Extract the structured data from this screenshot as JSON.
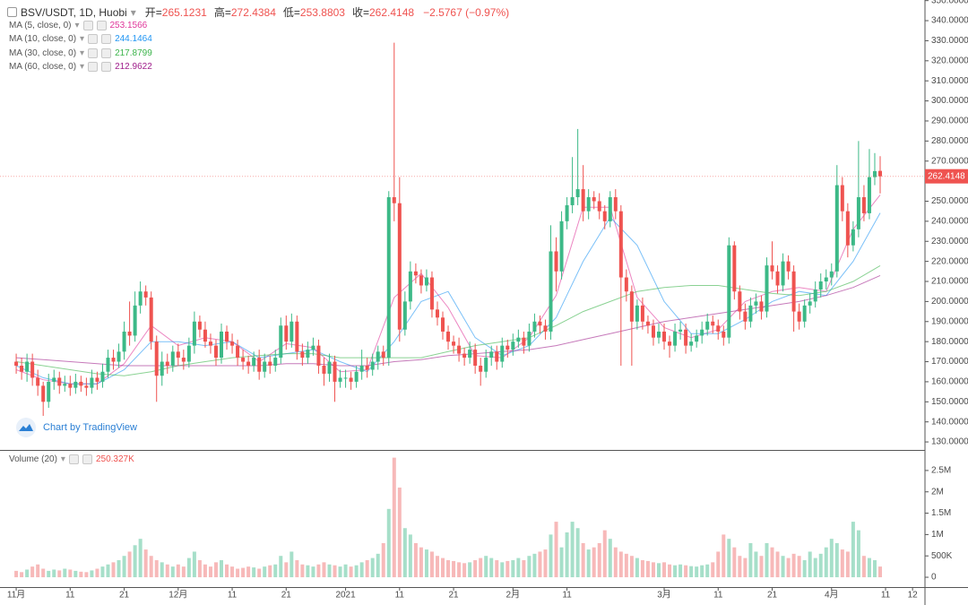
{
  "chart_data": {
    "type": "candlestick",
    "title": "BSV/USDT, 1D, Huobi",
    "ohlc_labels": [
      "开=",
      "高=",
      "低=",
      "收="
    ],
    "change": "−2.5767 (−0.97%)",
    "up_color": "#3cb987",
    "down_color": "#ef5350",
    "watermark": "Chart by TradingView",
    "xlim": [
      -3,
      168.3
    ],
    "xticks": [
      {
        "value": 0,
        "label": "11月"
      },
      {
        "value": 10,
        "label": "11"
      },
      {
        "value": 20,
        "label": "21"
      },
      {
        "value": 30,
        "label": "12月"
      },
      {
        "value": 40,
        "label": "11"
      },
      {
        "value": 50,
        "label": "21"
      },
      {
        "value": 61,
        "label": "2021"
      },
      {
        "value": 71,
        "label": "11"
      },
      {
        "value": 81,
        "label": "21"
      },
      {
        "value": 92,
        "label": "2月"
      },
      {
        "value": 102,
        "label": "11"
      },
      {
        "value": 120,
        "label": "3月"
      },
      {
        "value": 130,
        "label": "11"
      },
      {
        "value": 140,
        "label": "21"
      },
      {
        "value": 151,
        "label": "4月"
      },
      {
        "value": 161,
        "label": "11"
      },
      {
        "value": 166,
        "label": "12"
      }
    ],
    "ylim": [
      126.9,
      350.3
    ],
    "yticks": [
      {
        "value": 130,
        "label": "130.0000"
      },
      {
        "value": 140,
        "label": "140.0000"
      },
      {
        "value": 150,
        "label": "150.0000"
      },
      {
        "value": 160,
        "label": "160.0000"
      },
      {
        "value": 170,
        "label": "170.0000"
      },
      {
        "value": 180,
        "label": "180.0000"
      },
      {
        "value": 190,
        "label": "190.0000"
      },
      {
        "value": 200,
        "label": "200.0000"
      },
      {
        "value": 210,
        "label": "210.0000"
      },
      {
        "value": 220,
        "label": "220.0000"
      },
      {
        "value": 230,
        "label": "230.0000"
      },
      {
        "value": 240,
        "label": "240.0000"
      },
      {
        "value": 250,
        "label": "250.0000"
      },
      {
        "value": 260,
        "label": "260.0000"
      },
      {
        "value": 270,
        "label": "270.0000"
      },
      {
        "value": 280,
        "label": "280.0000"
      },
      {
        "value": 290,
        "label": "290.0000"
      },
      {
        "value": 300,
        "label": "300.0000"
      },
      {
        "value": 310,
        "label": "310.0000"
      },
      {
        "value": 320,
        "label": "320.0000"
      },
      {
        "value": 330,
        "label": "330.0000"
      },
      {
        "value": 340,
        "label": "340.0000"
      },
      {
        "value": 350,
        "label": "350.0000"
      }
    ],
    "open": [
      170,
      168,
      165,
      170,
      162,
      158,
      150,
      160,
      162,
      158,
      159,
      157,
      160,
      158,
      157,
      162,
      160,
      165,
      172,
      170,
      175,
      185,
      183,
      198,
      205,
      202,
      180,
      163,
      170,
      168,
      175,
      172,
      170,
      178,
      190,
      186,
      180,
      178,
      172,
      185,
      180,
      178,
      172,
      170,
      168,
      172,
      165,
      170,
      168,
      172,
      188,
      180,
      190,
      175,
      172,
      176,
      178,
      168,
      164,
      170,
      160,
      162,
      162,
      160,
      165,
      168,
      166,
      170,
      175,
      172,
      252,
      249,
      186,
      200,
      215,
      213,
      208,
      212,
      196,
      192,
      185,
      180,
      178,
      174,
      172,
      176,
      168,
      165,
      172,
      175,
      170,
      178,
      176,
      180,
      182,
      178,
      185,
      190,
      188,
      185,
      225,
      215,
      240,
      248,
      252,
      256,
      245,
      252,
      250,
      245,
      240,
      252,
      245,
      212,
      205,
      190,
      198,
      190,
      188,
      182,
      185,
      180,
      178,
      185,
      186,
      178,
      180,
      183,
      186,
      190,
      188,
      185,
      182,
      228,
      205,
      195,
      190,
      198,
      200,
      195,
      218,
      215,
      208,
      220,
      215,
      195,
      190,
      198,
      200,
      206,
      210,
      212,
      215,
      258,
      245,
      228,
      236,
      252,
      244,
      262,
      265.1231
    ],
    "high": [
      174,
      172,
      174,
      174,
      166,
      160,
      164,
      166,
      165,
      163,
      163,
      164,
      163,
      162,
      166,
      165,
      169,
      176,
      176,
      179,
      190,
      200,
      205,
      210,
      208,
      205,
      183,
      175,
      174,
      178,
      179,
      176,
      182,
      195,
      193,
      190,
      184,
      181,
      189,
      188,
      184,
      181,
      176,
      173,
      175,
      176,
      174,
      173,
      176,
      192,
      193,
      194,
      193,
      179,
      180,
      182,
      181,
      172,
      174,
      173,
      166,
      166,
      165,
      168,
      176,
      172,
      174,
      178,
      178,
      255,
      329,
      262,
      205,
      220,
      219,
      216,
      216,
      215,
      200,
      195,
      188,
      183,
      182,
      177,
      180,
      179,
      172,
      176,
      178,
      178,
      182,
      181,
      184,
      186,
      185,
      189,
      194,
      193,
      191,
      238,
      232,
      245,
      252,
      272,
      286,
      268,
      256,
      255,
      254,
      248,
      255,
      256,
      248,
      216,
      208,
      201,
      202,
      193,
      191,
      189,
      189,
      183,
      189,
      190,
      189,
      184,
      186,
      190,
      194,
      193,
      191,
      188,
      232,
      230,
      208,
      199,
      202,
      204,
      203,
      222,
      230,
      218,
      224,
      223,
      218,
      199,
      201,
      204,
      210,
      214,
      216,
      219,
      268,
      262,
      249,
      240,
      280,
      258,
      276,
      274,
      272.4384
    ],
    "low": [
      164,
      161,
      160,
      158,
      153,
      143,
      147,
      156,
      154,
      155,
      153,
      154,
      155,
      153,
      154,
      156,
      157,
      162,
      166,
      167,
      171,
      178,
      180,
      194,
      198,
      176,
      150,
      158,
      164,
      165,
      168,
      166,
      167,
      174,
      182,
      177,
      174,
      168,
      169,
      176,
      174,
      168,
      166,
      164,
      165,
      161,
      162,
      164,
      165,
      169,
      176,
      177,
      171,
      168,
      169,
      173,
      164,
      158,
      160,
      150,
      157,
      157,
      156,
      157,
      161,
      162,
      163,
      166,
      168,
      168,
      240,
      180,
      183,
      196,
      209,
      204,
      205,
      192,
      188,
      181,
      176,
      174,
      170,
      168,
      169,
      164,
      158,
      162,
      168,
      166,
      167,
      172,
      173,
      177,
      174,
      175,
      182,
      184,
      181,
      181,
      205,
      211,
      236,
      244,
      248,
      240,
      241,
      246,
      241,
      236,
      237,
      241,
      168,
      200,
      168,
      186,
      186,
      184,
      178,
      179,
      176,
      172,
      175,
      181,
      174,
      175,
      177,
      179,
      183,
      184,
      181,
      178,
      179,
      201,
      191,
      186,
      187,
      194,
      191,
      192,
      211,
      204,
      205,
      211,
      185,
      186,
      187,
      194,
      197,
      202,
      206,
      208,
      212,
      240,
      222,
      225,
      232,
      240,
      241,
      258,
      253.8803
    ],
    "close": [
      168,
      165,
      170,
      162,
      158,
      150,
      160,
      162,
      158,
      159,
      157,
      160,
      158,
      157,
      162,
      160,
      165,
      172,
      170,
      175,
      185,
      183,
      198,
      205,
      202,
      180,
      163,
      170,
      168,
      175,
      172,
      170,
      178,
      190,
      186,
      180,
      178,
      172,
      185,
      180,
      178,
      172,
      170,
      168,
      172,
      165,
      170,
      168,
      172,
      188,
      180,
      190,
      175,
      172,
      176,
      178,
      168,
      164,
      170,
      160,
      162,
      162,
      160,
      165,
      168,
      166,
      170,
      175,
      172,
      252,
      249,
      186,
      200,
      215,
      213,
      208,
      212,
      196,
      192,
      185,
      180,
      178,
      174,
      172,
      176,
      168,
      165,
      172,
      175,
      170,
      178,
      176,
      180,
      182,
      178,
      185,
      190,
      188,
      185,
      225,
      215,
      240,
      248,
      252,
      256,
      245,
      252,
      250,
      245,
      240,
      252,
      245,
      212,
      205,
      190,
      198,
      190,
      188,
      182,
      185,
      180,
      178,
      185,
      186,
      178,
      180,
      183,
      186,
      190,
      188,
      185,
      182,
      228,
      205,
      195,
      190,
      198,
      200,
      195,
      218,
      215,
      208,
      220,
      215,
      195,
      190,
      198,
      200,
      206,
      210,
      212,
      215,
      258,
      245,
      228,
      236,
      252,
      244,
      262,
      265,
      262.4148
    ],
    "moving_averages": [
      {
        "name": "MA (5, close, 0)",
        "color": "#e0369a",
        "x": [
          0,
          5,
          10,
          15,
          20,
          25,
          30,
          35,
          40,
          45,
          50,
          55,
          60,
          65,
          70,
          75,
          80,
          85,
          90,
          95,
          100,
          105,
          110,
          115,
          120,
          125,
          130,
          135,
          140,
          145,
          150,
          155,
          160
        ],
        "values": [
          166,
          161,
          159,
          159,
          169,
          188,
          178,
          182,
          180,
          170,
          179,
          177,
          165,
          166,
          202,
          214,
          197,
          173,
          172,
          182,
          203,
          247,
          247,
          202,
          187,
          182,
          186,
          200,
          205,
          207,
          205,
          236,
          253.1566
        ]
      },
      {
        "name": "MA (10, close, 0)",
        "color": "#2196f3",
        "x": [
          0,
          5,
          10,
          15,
          20,
          25,
          30,
          35,
          40,
          45,
          50,
          55,
          60,
          65,
          70,
          75,
          80,
          85,
          90,
          95,
          100,
          105,
          110,
          115,
          120,
          125,
          130,
          135,
          140,
          145,
          150,
          155,
          160
        ],
        "values": [
          168,
          162,
          159,
          159,
          166,
          180,
          180,
          178,
          180,
          172,
          174,
          176,
          170,
          165,
          180,
          200,
          205,
          182,
          173,
          178,
          192,
          220,
          242,
          228,
          200,
          184,
          184,
          191,
          200,
          205,
          203,
          220,
          244.1464
        ]
      },
      {
        "name": "MA (30, close, 0)",
        "color": "#3cb44b",
        "x": [
          0,
          5,
          10,
          15,
          20,
          25,
          30,
          35,
          40,
          45,
          50,
          55,
          60,
          65,
          70,
          75,
          80,
          85,
          90,
          95,
          100,
          105,
          110,
          115,
          120,
          125,
          130,
          135,
          140,
          145,
          150,
          155,
          160
        ],
        "values": [
          170,
          168,
          166,
          164,
          163,
          165,
          168,
          170,
          172,
          173,
          174,
          174,
          172,
          172,
          172,
          172,
          175,
          178,
          180,
          182,
          188,
          195,
          200,
          205,
          207,
          208,
          208,
          206,
          204,
          203,
          205,
          210,
          217.8799
        ]
      },
      {
        "name": "MA (60, close, 0)",
        "color": "#a0208c",
        "x": [
          0,
          5,
          10,
          15,
          20,
          25,
          30,
          35,
          40,
          45,
          50,
          55,
          60,
          65,
          70,
          75,
          80,
          85,
          90,
          95,
          100,
          105,
          110,
          115,
          120,
          125,
          130,
          135,
          140,
          145,
          150,
          155,
          160
        ],
        "values": [
          172,
          171,
          170,
          169,
          168,
          168,
          168,
          168,
          168,
          168,
          169,
          169,
          168,
          168,
          170,
          171,
          173,
          174,
          175,
          176,
          178,
          181,
          184,
          187,
          190,
          192,
          194,
          196,
          198,
          200,
          203,
          207,
          212.9622
        ]
      }
    ],
    "volume": {
      "name": "Volume (20)",
      "value_label": "250.327K",
      "up_color": "#a6dfc9",
      "down_color": "#f7b9b9",
      "ylim": [
        -230000,
        2960000
      ],
      "yticks": [
        0,
        {
          "value": 500000,
          "label": "500K"
        },
        {
          "value": 1000000,
          "label": "1M"
        },
        {
          "value": 1500000,
          "label": "1.5M"
        },
        {
          "value": 2000000,
          "label": "2M"
        },
        {
          "value": 2500000,
          "label": "2.5M"
        }
      ],
      "values": [
        150000,
        120000,
        180000,
        250000,
        300000,
        200000,
        150000,
        180000,
        160000,
        200000,
        180000,
        150000,
        130000,
        120000,
        160000,
        200000,
        250000,
        300000,
        350000,
        400000,
        500000,
        600000,
        750000,
        900000,
        650000,
        500000,
        400000,
        350000,
        300000,
        250000,
        300000,
        250000,
        450000,
        600000,
        400000,
        300000,
        250000,
        350000,
        400000,
        300000,
        250000,
        200000,
        220000,
        250000,
        230000,
        200000,
        250000,
        280000,
        300000,
        500000,
        350000,
        600000,
        400000,
        300000,
        280000,
        250000,
        300000,
        350000,
        300000,
        280000,
        250000,
        300000,
        250000,
        280000,
        350000,
        400000,
        450000,
        550000,
        800000,
        1600000,
        2800000,
        2100000,
        1150000,
        1000000,
        800000,
        700000,
        650000,
        600000,
        500000,
        450000,
        400000,
        380000,
        350000,
        330000,
        350000,
        400000,
        450000,
        500000,
        450000,
        400000,
        350000,
        380000,
        400000,
        450000,
        400000,
        500000,
        550000,
        600000,
        650000,
        1000000,
        1300000,
        700000,
        1050000,
        1300000,
        1150000,
        800000,
        650000,
        700000,
        800000,
        1100000,
        900000,
        700000,
        600000,
        550000,
        500000,
        450000,
        400000,
        380000,
        350000,
        330000,
        350000,
        300000,
        280000,
        300000,
        280000,
        260000,
        250000,
        280000,
        300000,
        350000,
        600000,
        1000000,
        900000,
        700000,
        500000,
        450000,
        800000,
        600000,
        500000,
        800000,
        700000,
        600000,
        500000,
        450000,
        550000,
        500000,
        400000,
        600000,
        450000,
        550000,
        700000,
        900000,
        800000,
        650000,
        600000,
        1300000,
        1100000,
        500000,
        450000,
        400000,
        250327
      ]
    }
  }
}
